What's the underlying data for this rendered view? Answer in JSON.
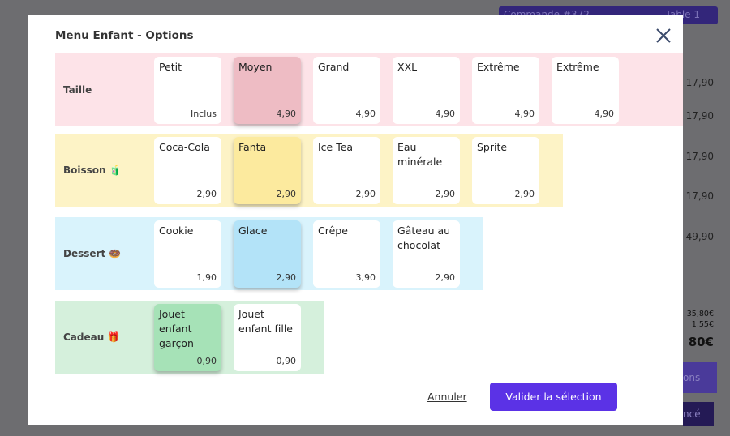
{
  "background": {
    "order_label": "Commande #372",
    "table_label": "Table 1",
    "prices": [
      "17,90",
      "17,90",
      "17,90",
      "17,90",
      "49,90"
    ],
    "totals": [
      "35,80€",
      "1,55€",
      "80€"
    ],
    "partial_buttons": [
      "ons",
      "ncé"
    ]
  },
  "modal": {
    "title": "Menu Enfant - Options",
    "groups": [
      {
        "label": "Taille",
        "color": "#fde3e8",
        "selected_color": "#eebcc4",
        "items": [
          {
            "name": "Petit",
            "price": "Inclus",
            "selected": false
          },
          {
            "name": "Moyen",
            "price": "4,90",
            "selected": true
          },
          {
            "name": "Grand",
            "price": "4,90",
            "selected": false
          },
          {
            "name": "XXL",
            "price": "4,90",
            "selected": false
          },
          {
            "name": "Extrême",
            "price": "4,90",
            "selected": false
          },
          {
            "name": "Extrême",
            "price": "4,90",
            "selected": false
          }
        ]
      },
      {
        "label": "Boisson 🧃",
        "color": "#fdf3c6",
        "selected_color": "#fcea9e",
        "items": [
          {
            "name": "Coca-Cola",
            "price": "2,90",
            "selected": false
          },
          {
            "name": "Fanta",
            "price": "2,90",
            "selected": true
          },
          {
            "name": "Ice Tea",
            "price": "2,90",
            "selected": false
          },
          {
            "name": "Eau minérale",
            "price": "2,90",
            "selected": false
          },
          {
            "name": "Sprite",
            "price": "2,90",
            "selected": false
          }
        ]
      },
      {
        "label": "Dessert 🍩",
        "color": "#d9f3fc",
        "selected_color": "#b3e3f8",
        "items": [
          {
            "name": "Cookie",
            "price": "1,90",
            "selected": false
          },
          {
            "name": "Glace",
            "price": "2,90",
            "selected": true
          },
          {
            "name": "Crêpe",
            "price": "3,90",
            "selected": false
          },
          {
            "name": "Gâteau au chocolat",
            "price": "2,90",
            "selected": false
          }
        ]
      },
      {
        "label": "Cadeau 🎁",
        "color": "#d5f0dc",
        "selected_color": "#a6e2b7",
        "items": [
          {
            "name": "Jouet enfant garçon",
            "price": "0,90",
            "selected": true
          },
          {
            "name": "Jouet enfant fille",
            "price": "0,90",
            "selected": false
          }
        ]
      }
    ],
    "cancel": "Annuler",
    "confirm": "Valider la sélection"
  }
}
